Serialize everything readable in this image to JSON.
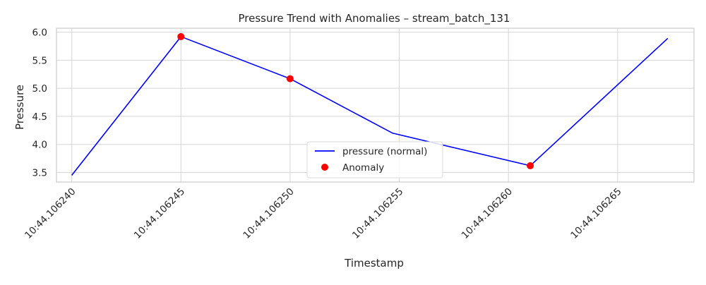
{
  "chart_data": {
    "type": "line",
    "title": "Pressure Trend with Anomalies – stream_batch_131",
    "xlabel": "Timestamp",
    "ylabel": "Pressure",
    "x_ticks": [
      "10:44.106240",
      "10:44.106245",
      "10:44.106250",
      "10:44.106255",
      "10:44.106260",
      "10:44.106265"
    ],
    "x_tick_values": [
      0.10624,
      0.106245,
      0.10625,
      0.106255,
      0.10626,
      0.106265
    ],
    "xlim": [
      0.1062393,
      0.1062685
    ],
    "y_ticks": [
      3.5,
      4.0,
      4.5,
      5.0,
      5.5,
      6.0
    ],
    "ylim": [
      3.33,
      6.07
    ],
    "grid": true,
    "legend_placement": "lower-center",
    "series": [
      {
        "name": "pressure (normal)",
        "kind": "line",
        "color": "#0000ff",
        "x": [
          0.10624,
          0.106245,
          0.10625,
          0.1062547,
          0.106261,
          0.1062673
        ],
        "y": [
          3.45,
          5.92,
          5.17,
          4.2,
          3.62,
          5.89
        ]
      },
      {
        "name": "Anomaly",
        "kind": "scatter",
        "color": "#ff0000",
        "x": [
          0.106245,
          0.10625,
          0.106261
        ],
        "y": [
          5.92,
          5.17,
          3.62
        ]
      }
    ]
  }
}
